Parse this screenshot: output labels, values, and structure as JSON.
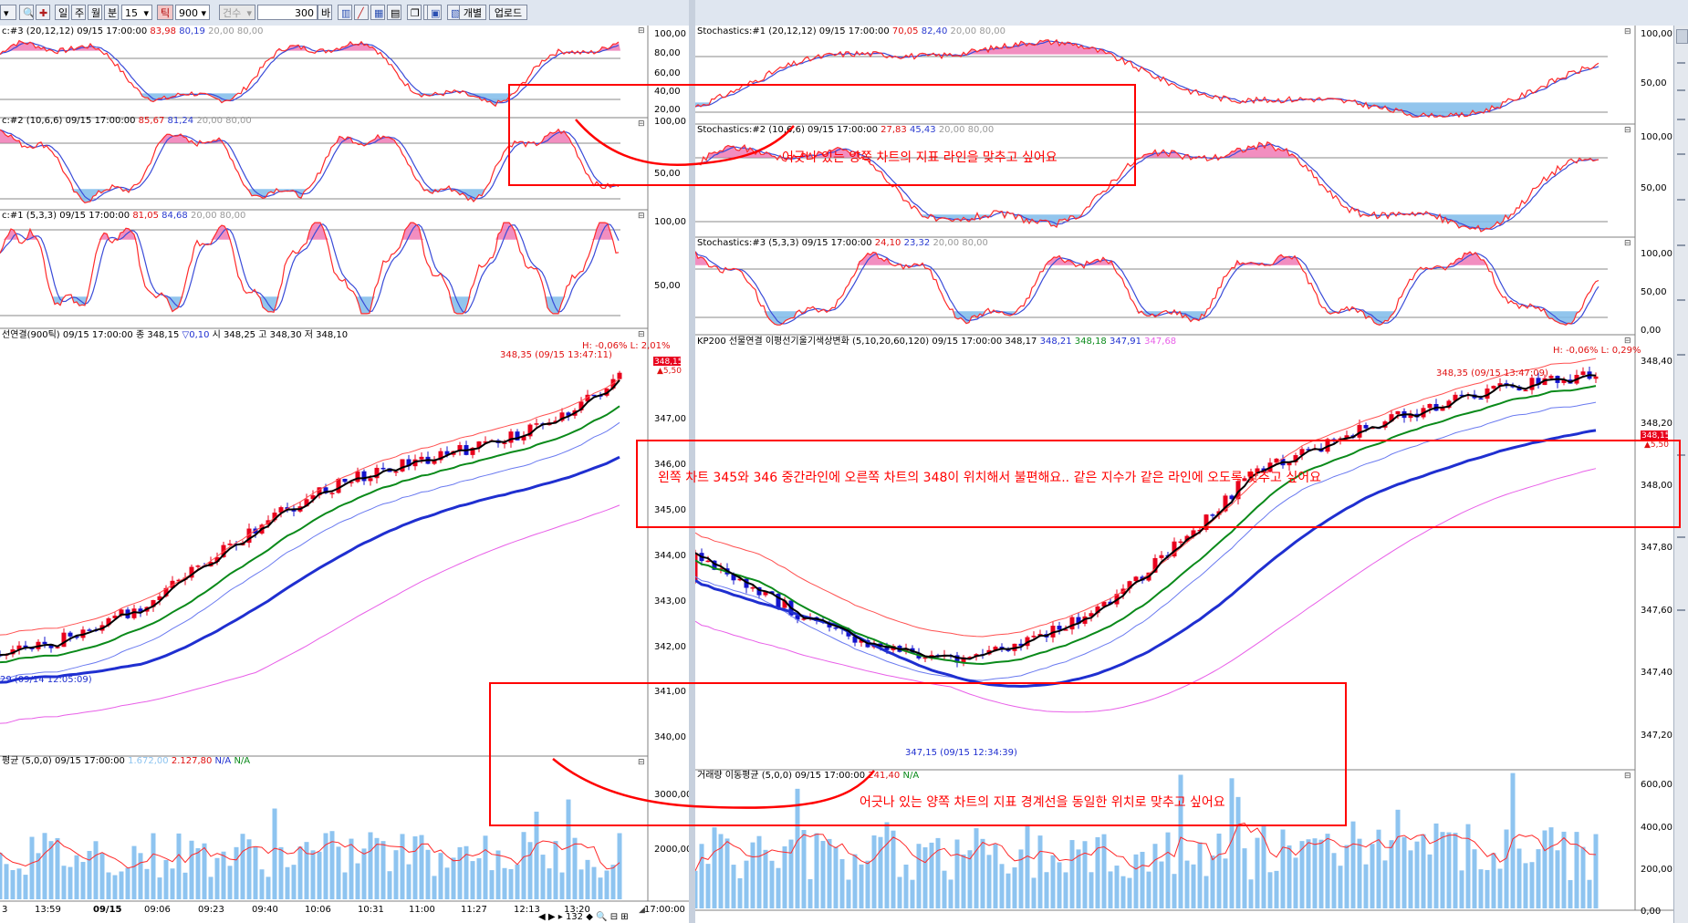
{
  "toolbar": {
    "tf_day": "일",
    "tf_week": "주",
    "tf_month": "월",
    "tf_min": "분",
    "interval_value": "15",
    "tf_tick": "틱",
    "tick_value": "900",
    "count_label": "건수",
    "count_value": "300",
    "bar_unit": "바",
    "individual_label": "개별",
    "upload_label": "업로드"
  },
  "left_chart": {
    "stoch3_legend": "c:#3 (20,12,12) 09/15 17:00:00",
    "stoch3_v1": "83,98",
    "stoch3_v2": "80,19",
    "stoch3_v3": "20,00 80,00",
    "stoch3_ticks": [
      "100,00",
      "80,00",
      "60,00",
      "40,00",
      "20,00"
    ],
    "stoch2_legend": "c:#2 (10,6,6) 09/15 17:00:00",
    "stoch2_v1": "85,67",
    "stoch2_v2": "81,24",
    "stoch2_v3": "20,00 80,00",
    "stoch2_ticks": [
      "100,00",
      "50,00"
    ],
    "stoch1_legend": "c:#1 (5,3,3) 09/15 17:00:00",
    "stoch1_v1": "81,05",
    "stoch1_v2": "84,68",
    "stoch1_v3": "20,00 80,00",
    "stoch1_ticks": [
      "100,00",
      "50,00"
    ],
    "price_legend": "선연결(900틱) 09/15 17:00:00 종 348,15",
    "price_change": "▽0,10",
    "price_legend_tail": "시 348,25 고 348,30 저 348,10",
    "hl_label": "H: -0,06% L: 2,01%",
    "high_label": "348,35 (09/15 13:47:11)",
    "low_label": "29 (09/14 12:05:09)",
    "price_tag": "348,15",
    "price_tag2": "▲5,50",
    "price_ticks": [
      "347,00",
      "346,00",
      "345,00",
      "344,00",
      "343,00",
      "342,00",
      "341,00",
      "340,00"
    ],
    "vol_legend": "평균 (5,0,0) 09/15 17:00:00",
    "vol_v1": "1.672,00",
    "vol_v2": "2.127,80",
    "vol_v3": "N/A",
    "vol_v4": "N/A",
    "vol_ticks": [
      "3000,00",
      "2000,00"
    ],
    "x_labels": [
      "3",
      "13:59",
      "09/15",
      "09:06",
      "09:23",
      "09:40",
      "10:06",
      "10:31",
      "11:00",
      "11:27",
      "12:13",
      "13:20"
    ],
    "corner_time": "17:00:00"
  },
  "right_chart": {
    "stoch1_legend": "Stochastics:#1 (20,12,12) 09/15 17:00:00",
    "stoch1_v1": "70,05",
    "stoch1_v2": "82,40",
    "stoch1_v3": "20,00 80,00",
    "stoch1_ticks": [
      "100,00",
      "50,00"
    ],
    "stoch2_legend": "Stochastics:#2 (10,6,6) 09/15 17:00:00",
    "stoch2_v1": "27,83",
    "stoch2_v2": "45,43",
    "stoch2_v3": "20,00 80,00",
    "stoch2_ticks": [
      "100,00",
      "50,00"
    ],
    "stoch3_legend": "Stochastics:#3 (5,3,3) 09/15 17:00:00",
    "stoch3_v1": "24,10",
    "stoch3_v2": "23,32",
    "stoch3_v3": "20,00 80,00",
    "stoch3_ticks": [
      "100,00",
      "50,00",
      "0,00"
    ],
    "price_legend": "KP200 선물연결 이평선기울기색상변화 (5,10,20,60,120) 09/15 17:00:00 348,17",
    "price_v1": "348,21",
    "price_v2": "348,18",
    "price_v3": "347,91",
    "price_v4": "347,68",
    "hl_label": "H: -0,06% L: 0,29%",
    "high_label": "348,35 (09/15 13:47:09)",
    "low_label": "347,15 (09/15 12:34:39)",
    "price_tag": "348,15",
    "price_tag2": "▲5,50",
    "price_ticks": [
      "348,40",
      "348,20",
      "348,00",
      "347,80",
      "347,60",
      "347,40",
      "347,20"
    ],
    "vol_legend": "거래량 이동평균 (5,0,0) 09/15 17:00:00",
    "vol_v1": "241,40",
    "vol_v2": "N/A",
    "vol_ticks": [
      "600,00",
      "400,00",
      "200,00",
      "0,00"
    ]
  },
  "annotations": {
    "note1": "어긋나 있는 양쪽 차트의 지표 라인을 맞추고 싶어요",
    "note2": "왼쪽 차트 345와 346 중간라인에 오른쪽 차트의 348이 위치해서 불편해요.. 같은 지수가 같은 라인에 오도록 맞추고 싶어요",
    "note3": "어긋나 있는 양쪽 차트의 지표 경계선을 동일한 위치로 맞추고 싶어요"
  },
  "footer": {
    "page_info": "132"
  },
  "colors": {
    "annotation_red": "#ff0000",
    "candle_up": "#e8001c",
    "candle_down": "#1414cc",
    "stoch_fast": "#ff2a2a",
    "stoch_slow": "#3a4bd8",
    "stoch_fill_top": "#f07ab5",
    "stoch_fill_bottom": "#7fbbea",
    "ma_5": "#000000",
    "ma_20": "#0a8a1a",
    "ma_60": "#1f2fd0",
    "ma_120": "#e85fe8",
    "band_upper": "#ff5050",
    "band_lower": "#6a7af0",
    "volume_bar": "#8ec4f0"
  }
}
